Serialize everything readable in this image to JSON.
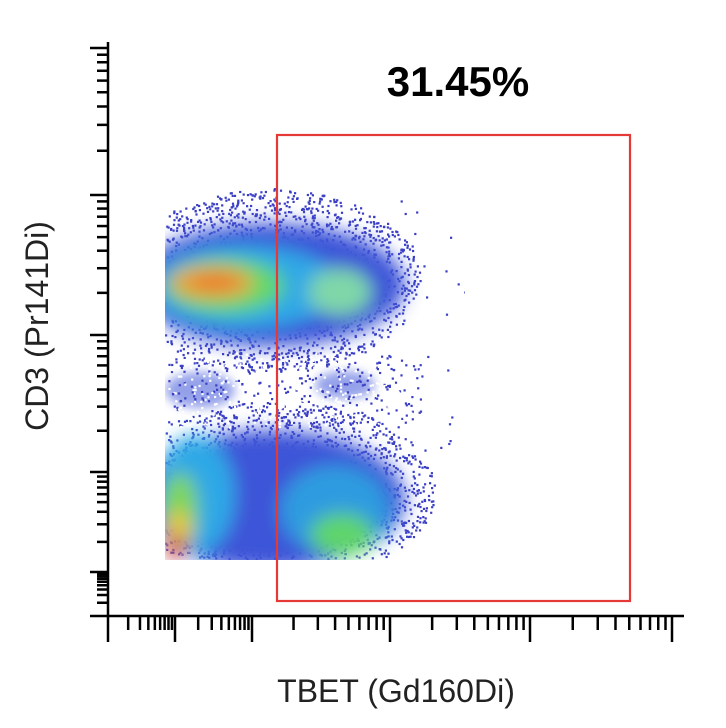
{
  "chart_data": {
    "type": "scatter",
    "subtype": "flow-cytometry-density-plot",
    "xlabel": "TBET (Gd160Di)",
    "ylabel": "CD3 (Pr141Di)",
    "scale": "log (biexponential)",
    "colormap": "density (blue → green → yellow → red)",
    "populations": [
      {
        "cd3": "high",
        "tbet": "low to mid",
        "density": "high"
      },
      {
        "cd3": "intermediate",
        "tbet": "low to mid",
        "density": "sparse"
      },
      {
        "cd3": "low",
        "tbet": "low",
        "density": "very high"
      },
      {
        "cd3": "low",
        "tbet": "mid",
        "density": "moderate"
      }
    ],
    "gate": {
      "shape": "rectangle",
      "color": "#e53935",
      "percent": "31.45%"
    },
    "grid": false,
    "legend": "none"
  }
}
